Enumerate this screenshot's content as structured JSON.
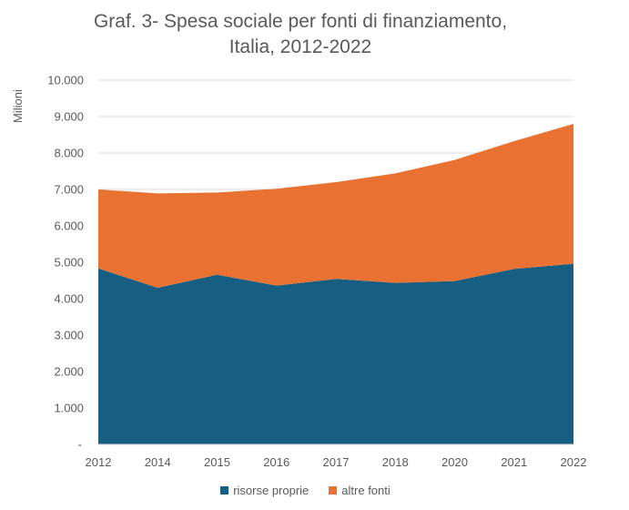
{
  "chart_data": {
    "type": "area",
    "stacked": true,
    "title": "Graf. 3- Spesa sociale per fonti di finanziamento, Italia, 2012-2022",
    "title_lines": [
      "Graf. 3- Spesa sociale per fonti di finanziamento,",
      "Italia, 2012-2022"
    ],
    "ylabel": "Milioni",
    "xlabel": "",
    "categories": [
      "2012",
      "2014",
      "2015",
      "2016",
      "2017",
      "2018",
      "2020",
      "2021",
      "2022"
    ],
    "ylim": [
      0,
      10000
    ],
    "yticks": [
      "-",
      "1.000",
      "2.000",
      "3.000",
      "4.000",
      "5.000",
      "6.000",
      "7.000",
      "8.000",
      "9.000",
      "10.000"
    ],
    "grid": true,
    "legend_position": "bottom",
    "series": [
      {
        "name": "risorse proprie",
        "color": "#175F82",
        "values": [
          4830,
          4300,
          4660,
          4360,
          4545,
          4435,
          4485,
          4820,
          4960
        ]
      },
      {
        "name": "altre fonti",
        "color": "#E97132",
        "values": [
          2170,
          2590,
          2255,
          2660,
          2655,
          3005,
          3325,
          3505,
          3840
        ]
      }
    ]
  }
}
